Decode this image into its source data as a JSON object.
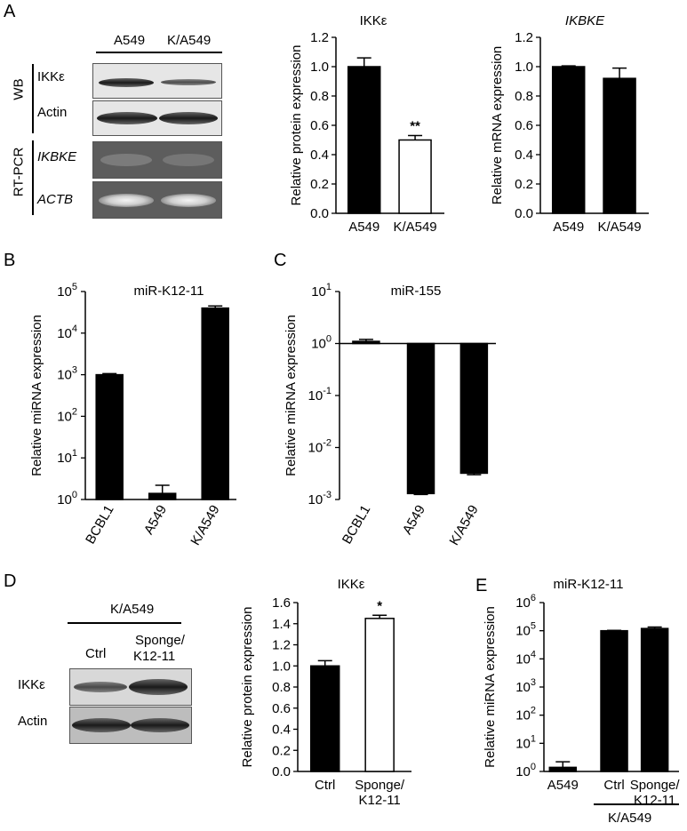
{
  "panels": {
    "A": {
      "label": "A",
      "blot": {
        "lanes": [
          "A549",
          "K/A549"
        ],
        "group_wb": "WB",
        "group_rt": "RT-PCR",
        "rows": [
          "IKKε",
          "Actin",
          "IKBKE",
          "ACTB"
        ],
        "wb_band_intensity": [
          1.0,
          0.5
        ]
      }
    },
    "B": {
      "label": "B"
    },
    "C": {
      "label": "C"
    },
    "D": {
      "label": "D",
      "blot": {
        "group": "K/A549",
        "lanes": [
          "Ctrl",
          "Sponge/\nK12-11"
        ],
        "lane_line1": [
          "Ctrl",
          "Sponge/"
        ],
        "lane_line2": [
          "",
          "K12-11"
        ],
        "rows": [
          "IKKε",
          "Actin"
        ]
      }
    },
    "E": {
      "label": "E",
      "group": "K/A549"
    }
  },
  "chart_data": [
    {
      "id": "A-protein",
      "type": "bar",
      "title": "IKKε",
      "ylabel": "Relative protein expression",
      "categories": [
        "A549",
        "K/A549"
      ],
      "values": [
        1.0,
        0.5
      ],
      "errors": [
        0.06,
        0.03
      ],
      "fills": [
        "#000000",
        "#ffffff"
      ],
      "annotations": [
        "",
        "**"
      ],
      "ylim": [
        0,
        1.2
      ],
      "yticks": [
        "0.0",
        "0.2",
        "0.4",
        "0.6",
        "0.8",
        "1.0",
        "1.2"
      ],
      "scale": "linear"
    },
    {
      "id": "A-mrna",
      "type": "bar",
      "title": "IKBKE",
      "ylabel": "Relative mRNA expression",
      "categories": [
        "A549",
        "K/A549"
      ],
      "values": [
        1.0,
        0.92
      ],
      "errors": [
        0.005,
        0.07
      ],
      "fills": [
        "#000000",
        "#000000"
      ],
      "annotations": [
        "",
        ""
      ],
      "ylim": [
        0,
        1.2
      ],
      "yticks": [
        "0.0",
        "0.2",
        "0.4",
        "0.6",
        "0.8",
        "1.0",
        "1.2"
      ],
      "scale": "linear"
    },
    {
      "id": "B",
      "type": "bar",
      "title": "miR-K12-11",
      "ylabel": "Relative miRNA expression",
      "categories": [
        "BCBL1",
        "A549",
        "K/A549"
      ],
      "values": [
        1000,
        1.4,
        40000
      ],
      "errors": [
        60,
        0.8,
        5000
      ],
      "fills": [
        "#000000",
        "#000000",
        "#000000"
      ],
      "annotations": [
        "",
        "",
        ""
      ],
      "ylim": [
        1,
        100000
      ],
      "yticks_exp": [
        "0",
        "1",
        "2",
        "3",
        "4",
        "5"
      ],
      "scale": "log"
    },
    {
      "id": "C",
      "type": "bar",
      "title": "miR-155",
      "ylabel": "Relative miRNA expression",
      "categories": [
        "BCBL1",
        "A549",
        "K/A549"
      ],
      "values": [
        1.1,
        0.0013,
        0.0032
      ],
      "errors": [
        0.1,
        5e-05,
        0.0002
      ],
      "fills": [
        "#000000",
        "#000000",
        "#000000"
      ],
      "annotations": [
        "",
        "",
        ""
      ],
      "ylim": [
        0.001,
        10
      ],
      "baseline": 1,
      "yticks_exp": [
        "-3",
        "-2",
        "-1",
        "0",
        "1"
      ],
      "scale": "log"
    },
    {
      "id": "D-protein",
      "type": "bar",
      "title": "IKKε",
      "ylabel": "Relative protein expression",
      "categories": [
        "Ctrl",
        "Sponge/\nK12-11"
      ],
      "values": [
        1.0,
        1.45
      ],
      "errors": [
        0.05,
        0.03
      ],
      "fills": [
        "#000000",
        "#ffffff"
      ],
      "annotations": [
        "",
        "*"
      ],
      "ylim": [
        0,
        1.6
      ],
      "yticks": [
        "0.0",
        "0.2",
        "0.4",
        "0.6",
        "0.8",
        "1.0",
        "1.2",
        "1.4",
        "1.6"
      ],
      "scale": "linear"
    },
    {
      "id": "E",
      "type": "bar",
      "title": "miR-K12-11",
      "ylabel": "Relative miRNA expression",
      "categories": [
        "A549",
        "Ctrl",
        "Sponge/\nK12-11"
      ],
      "values": [
        1.4,
        100000,
        120000
      ],
      "errors": [
        0.8,
        3000,
        15000
      ],
      "fills": [
        "#000000",
        "#000000",
        "#000000"
      ],
      "annotations": [
        "",
        "",
        ""
      ],
      "ylim": [
        1,
        1000000
      ],
      "yticks_exp": [
        "0",
        "1",
        "2",
        "3",
        "4",
        "5",
        "6"
      ],
      "scale": "log"
    }
  ]
}
